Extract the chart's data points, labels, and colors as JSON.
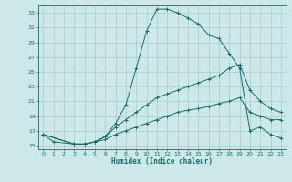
{
  "bg_color": "#cce8e8",
  "grid_color": "#b0d0d0",
  "line_color": "#1a6b6b",
  "xlabel": "Humidex (Indice chaleur)",
  "xlim": [
    -0.5,
    23.5
  ],
  "ylim": [
    14.5,
    34
  ],
  "xticks": [
    0,
    1,
    2,
    3,
    4,
    5,
    6,
    7,
    8,
    9,
    10,
    11,
    12,
    13,
    14,
    15,
    16,
    17,
    18,
    19,
    20,
    21,
    22,
    23
  ],
  "yticks": [
    15,
    17,
    19,
    21,
    23,
    25,
    27,
    29,
    31,
    33
  ],
  "curve1_x": [
    0,
    1,
    3,
    4,
    5,
    6,
    7,
    8,
    9,
    10,
    11,
    12,
    13,
    14,
    15,
    16,
    17,
    18,
    19,
    20,
    21,
    22,
    23
  ],
  "curve1_y": [
    16.5,
    15.5,
    15.2,
    15.2,
    15.5,
    16.2,
    18.0,
    20.5,
    25.5,
    30.5,
    33.5,
    33.5,
    33.0,
    32.3,
    31.5,
    30.0,
    29.5,
    27.5,
    25.5,
    17.0,
    17.5,
    16.5,
    16.0
  ],
  "curve2_x": [
    0,
    3,
    4,
    5,
    6,
    7,
    8,
    9,
    10,
    11,
    12,
    13,
    14,
    15,
    16,
    17,
    18,
    19,
    20,
    21,
    22,
    23
  ],
  "curve2_y": [
    16.5,
    15.2,
    15.2,
    15.5,
    16.2,
    17.5,
    18.5,
    19.5,
    20.5,
    21.5,
    22.0,
    22.5,
    23.0,
    23.5,
    24.0,
    24.5,
    25.5,
    26.0,
    22.5,
    21.0,
    20.0,
    19.5
  ],
  "curve3_x": [
    0,
    3,
    4,
    5,
    6,
    7,
    8,
    9,
    10,
    11,
    12,
    13,
    14,
    15,
    16,
    17,
    18,
    19,
    20,
    21,
    22,
    23
  ],
  "curve3_y": [
    16.5,
    15.2,
    15.2,
    15.5,
    15.8,
    16.5,
    17.0,
    17.5,
    18.0,
    18.5,
    19.0,
    19.5,
    19.8,
    20.0,
    20.3,
    20.7,
    21.0,
    21.5,
    19.5,
    19.0,
    18.5,
    18.5
  ]
}
